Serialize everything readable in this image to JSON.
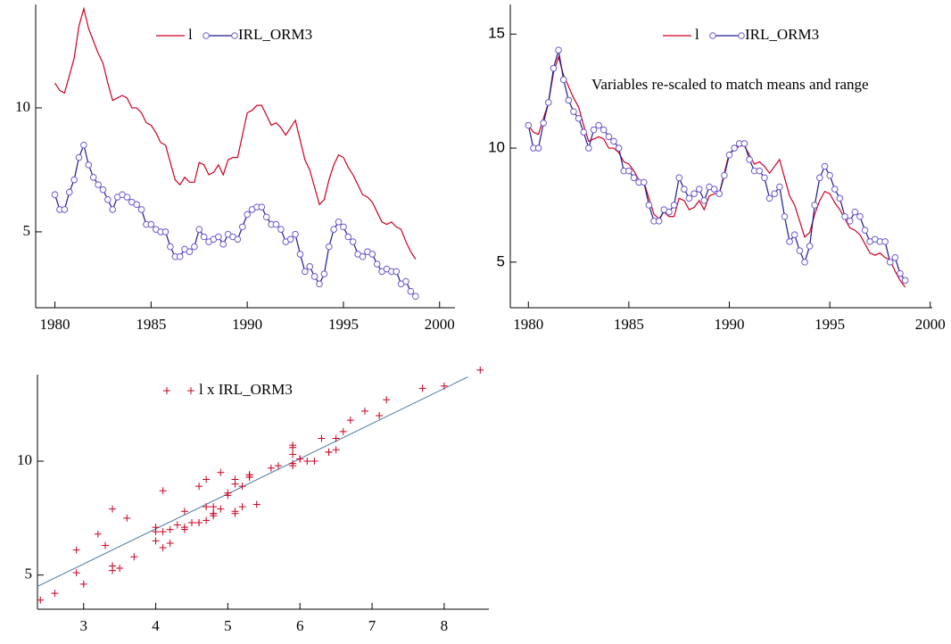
{
  "chart_data": [
    {
      "type": "line",
      "x": [
        1980,
        1980.25,
        1980.5,
        1980.75,
        1981,
        1981.25,
        1981.5,
        1981.75,
        1982,
        1982.25,
        1982.5,
        1982.75,
        1983,
        1983.25,
        1983.5,
        1983.75,
        1984,
        1984.25,
        1984.5,
        1984.75,
        1985,
        1985.25,
        1985.5,
        1985.75,
        1986,
        1986.25,
        1986.5,
        1986.75,
        1987,
        1987.25,
        1987.5,
        1987.75,
        1988,
        1988.25,
        1988.5,
        1988.75,
        1989,
        1989.25,
        1989.5,
        1989.75,
        1990,
        1990.25,
        1990.5,
        1990.75,
        1991,
        1991.25,
        1991.5,
        1991.75,
        1992,
        1992.25,
        1992.5,
        1992.75,
        1993,
        1993.25,
        1993.5,
        1993.75,
        1994,
        1994.25,
        1994.5,
        1994.75,
        1995,
        1995.25,
        1995.5,
        1995.75,
        1996,
        1996.25,
        1996.5,
        1996.75,
        1997,
        1997.25,
        1997.5,
        1997.75,
        1998,
        1998.25,
        1998.5,
        1998.75
      ],
      "series": [
        {
          "name": "l",
          "color": "#cc0022",
          "markers": false,
          "values": [
            11.0,
            10.7,
            10.6,
            11.3,
            12.0,
            13.3,
            14.0,
            13.2,
            12.7,
            12.2,
            11.8,
            11.0,
            10.3,
            10.4,
            10.5,
            10.4,
            10.0,
            10.0,
            9.8,
            9.4,
            9.3,
            9.0,
            8.6,
            8.5,
            7.8,
            7.1,
            6.9,
            7.2,
            7.0,
            7.0,
            7.8,
            7.7,
            7.3,
            7.4,
            7.7,
            7.3,
            7.9,
            8.0,
            8.0,
            8.9,
            9.8,
            9.9,
            10.1,
            10.1,
            9.7,
            9.3,
            9.4,
            9.2,
            8.9,
            9.2,
            9.5,
            8.7,
            7.9,
            7.5,
            6.8,
            6.1,
            6.3,
            7.1,
            7.7,
            8.1,
            8.0,
            7.6,
            7.3,
            6.9,
            6.5,
            6.4,
            6.2,
            5.8,
            5.4,
            5.3,
            5.4,
            5.2,
            5.1,
            4.6,
            4.2,
            3.9
          ]
        },
        {
          "name": "IRL_ORM3",
          "color": "#1a1a8c",
          "markers": true,
          "values": [
            6.5,
            5.9,
            5.9,
            6.6,
            7.1,
            8.0,
            8.5,
            7.7,
            7.2,
            6.9,
            6.7,
            6.3,
            5.9,
            6.4,
            6.5,
            6.4,
            6.2,
            6.1,
            5.9,
            5.3,
            5.3,
            5.1,
            5.0,
            5.0,
            4.4,
            4.0,
            4.0,
            4.3,
            4.2,
            4.4,
            5.1,
            4.8,
            4.6,
            4.7,
            4.8,
            4.5,
            4.9,
            4.8,
            4.7,
            5.2,
            5.7,
            5.9,
            6.0,
            6.0,
            5.6,
            5.3,
            5.3,
            5.1,
            4.6,
            4.7,
            4.9,
            4.1,
            3.4,
            3.6,
            3.2,
            2.9,
            3.3,
            4.4,
            5.1,
            5.4,
            5.2,
            4.8,
            4.6,
            4.1,
            4.0,
            4.2,
            4.1,
            3.7,
            3.4,
            3.5,
            3.4,
            3.4,
            2.9,
            3.0,
            2.6,
            2.4
          ]
        }
      ],
      "xlim": [
        1979,
        2000.8
      ],
      "xticks": [
        1980,
        1985,
        1990,
        1995,
        2000
      ],
      "ylim": [
        1.94,
        14.17
      ],
      "yticks": [
        5,
        10
      ]
    },
    {
      "type": "line",
      "annotation": "Variables re-scaled to match means and range",
      "x": [
        1980,
        1980.25,
        1980.5,
        1980.75,
        1981,
        1981.25,
        1981.5,
        1981.75,
        1982,
        1982.25,
        1982.5,
        1982.75,
        1983,
        1983.25,
        1983.5,
        1983.75,
        1984,
        1984.25,
        1984.5,
        1984.75,
        1985,
        1985.25,
        1985.5,
        1985.75,
        1986,
        1986.25,
        1986.5,
        1986.75,
        1987,
        1987.25,
        1987.5,
        1987.75,
        1988,
        1988.25,
        1988.5,
        1988.75,
        1989,
        1989.25,
        1989.5,
        1989.75,
        1990,
        1990.25,
        1990.5,
        1990.75,
        1991,
        1991.25,
        1991.5,
        1991.75,
        1992,
        1992.25,
        1992.5,
        1992.75,
        1993,
        1993.25,
        1993.5,
        1993.75,
        1994,
        1994.25,
        1994.5,
        1994.75,
        1995,
        1995.25,
        1995.5,
        1995.75,
        1996,
        1996.25,
        1996.5,
        1996.75,
        1997,
        1997.25,
        1997.5,
        1997.75,
        1998,
        1998.25,
        1998.5,
        1998.75
      ],
      "series": [
        {
          "name": "l",
          "color": "#cc0022",
          "markers": false,
          "values": [
            11.0,
            10.7,
            10.6,
            11.3,
            12.0,
            13.3,
            14.0,
            13.2,
            12.7,
            12.2,
            11.8,
            11.0,
            10.3,
            10.4,
            10.5,
            10.4,
            10.0,
            10.0,
            9.8,
            9.4,
            9.3,
            9.0,
            8.6,
            8.5,
            7.8,
            7.1,
            6.9,
            7.2,
            7.0,
            7.0,
            7.8,
            7.7,
            7.3,
            7.4,
            7.7,
            7.3,
            7.9,
            8.0,
            8.0,
            8.9,
            9.8,
            9.9,
            10.1,
            10.1,
            9.7,
            9.3,
            9.4,
            9.2,
            8.9,
            9.2,
            9.5,
            8.7,
            7.9,
            7.5,
            6.8,
            6.1,
            6.3,
            7.1,
            7.7,
            8.1,
            8.0,
            7.6,
            7.3,
            6.9,
            6.5,
            6.4,
            6.2,
            5.8,
            5.4,
            5.3,
            5.4,
            5.2,
            5.1,
            4.6,
            4.2,
            3.9
          ]
        },
        {
          "name": "IRL_ORM3",
          "color": "#1a1a8c",
          "markers": true,
          "values": [
            11.0,
            10.0,
            10.0,
            11.1,
            12.0,
            13.5,
            14.3,
            13.0,
            12.1,
            11.6,
            11.3,
            10.7,
            10.0,
            10.8,
            11.0,
            10.8,
            10.5,
            10.3,
            10.0,
            9.0,
            9.0,
            8.7,
            8.5,
            8.5,
            7.5,
            6.8,
            6.8,
            7.3,
            7.2,
            7.5,
            8.7,
            8.2,
            7.8,
            8.0,
            8.2,
            7.7,
            8.3,
            8.2,
            8.0,
            8.8,
            9.7,
            10.0,
            10.2,
            10.2,
            9.5,
            9.0,
            9.0,
            8.7,
            7.8,
            8.0,
            8.3,
            7.0,
            5.9,
            6.2,
            5.5,
            5.0,
            5.7,
            7.5,
            8.7,
            9.2,
            8.8,
            8.2,
            7.8,
            7.0,
            6.8,
            7.2,
            7.0,
            6.4,
            5.9,
            6.0,
            5.9,
            5.9,
            5.0,
            5.2,
            4.5,
            4.2
          ]
        }
      ],
      "xlim": [
        1979.1,
        2000.1
      ],
      "xticks": [
        1980,
        1985,
        1990,
        1995,
        2000
      ],
      "ylim": [
        3.0,
        16.3
      ],
      "yticks": [
        5,
        10,
        15
      ]
    },
    {
      "type": "scatter",
      "series": [
        {
          "name": "l x IRL_ORM3",
          "color": "#cc0022",
          "x": [
            6.5,
            5.9,
            5.9,
            6.6,
            7.1,
            8.0,
            8.5,
            7.7,
            7.2,
            6.9,
            6.7,
            6.3,
            5.9,
            6.4,
            6.5,
            6.4,
            6.2,
            6.1,
            5.9,
            5.3,
            5.3,
            5.1,
            5.0,
            5.0,
            4.4,
            4.0,
            4.0,
            4.3,
            4.2,
            4.4,
            5.1,
            4.8,
            4.6,
            4.7,
            4.8,
            4.5,
            4.9,
            4.8,
            4.7,
            5.2,
            5.7,
            5.9,
            6.0,
            6.0,
            5.6,
            5.3,
            5.3,
            5.1,
            4.6,
            4.7,
            4.9,
            4.1,
            3.4,
            3.6,
            3.2,
            2.9,
            3.3,
            4.4,
            5.1,
            5.4,
            5.2,
            4.8,
            4.6,
            4.1,
            4.0,
            4.2,
            4.1,
            3.7,
            3.4,
            3.5,
            3.4,
            3.4,
            2.9,
            3.0,
            2.6,
            2.4
          ],
          "y": [
            11.0,
            10.7,
            10.6,
            11.3,
            12.0,
            13.3,
            14.0,
            13.2,
            12.7,
            12.2,
            11.8,
            11.0,
            10.3,
            10.4,
            10.5,
            10.4,
            10.0,
            10.0,
            9.8,
            9.4,
            9.3,
            9.0,
            8.6,
            8.5,
            7.8,
            7.1,
            6.9,
            7.2,
            7.0,
            7.0,
            7.8,
            7.7,
            7.3,
            7.4,
            7.7,
            7.3,
            7.9,
            8.0,
            8.0,
            8.9,
            9.8,
            9.9,
            10.1,
            10.1,
            9.7,
            9.3,
            9.4,
            9.2,
            8.9,
            9.2,
            9.5,
            8.7,
            7.9,
            7.5,
            6.8,
            6.1,
            6.3,
            7.1,
            7.7,
            8.1,
            8.0,
            7.6,
            7.3,
            6.9,
            6.5,
            6.4,
            6.2,
            5.8,
            5.4,
            5.3,
            5.4,
            5.2,
            5.1,
            4.6,
            4.2,
            3.9
          ]
        }
      ],
      "fit_line": {
        "color": "#4a7a9a",
        "x": [
          2.36,
          8.33
        ],
        "y": [
          4.5,
          13.7
        ]
      },
      "xlim": [
        2.36,
        8.62
      ],
      "xticks": [
        3,
        4,
        5,
        6,
        7,
        8
      ],
      "ylim": [
        3.5,
        13.8
      ],
      "yticks": [
        5,
        10
      ]
    }
  ]
}
